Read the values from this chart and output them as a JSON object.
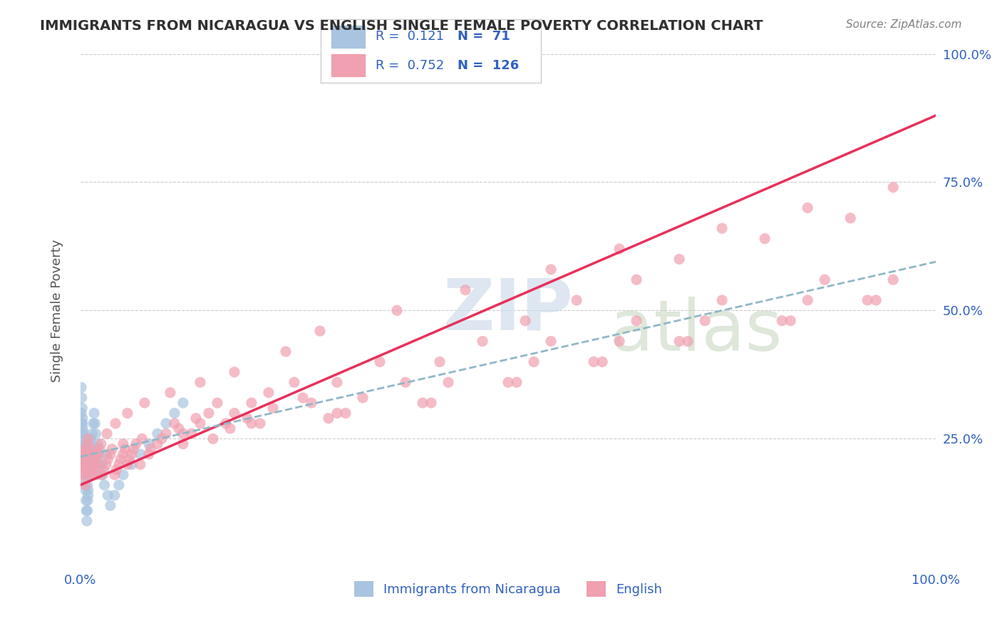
{
  "title": "IMMIGRANTS FROM NICARAGUA VS ENGLISH SINGLE FEMALE POVERTY CORRELATION CHART",
  "source": "Source: ZipAtlas.com",
  "xlabel": "",
  "ylabel": "Single Female Poverty",
  "xticklabels": [
    "0.0%",
    "100.0%"
  ],
  "yticklabels": [
    "25.0%",
    "50.0%",
    "75.0%",
    "100.0%"
  ],
  "legend_labels": [
    "Immigrants from Nicaragua",
    "English"
  ],
  "r_blue": "0.121",
  "n_blue": "71",
  "r_pink": "0.752",
  "n_pink": "126",
  "blue_color": "#a8c4e0",
  "pink_color": "#f0a0b0",
  "blue_line_color": "#4a90d0",
  "pink_line_color": "#e8305a",
  "dashed_line_color": "#90b8c8",
  "legend_text_color": "#3060c0",
  "title_color": "#303030",
  "watermark_color1": "#c8d8e8",
  "watermark_color2": "#c8d8c0",
  "blue_scatter": {
    "x": [
      0.3,
      0.5,
      0.7,
      0.8,
      1.0,
      1.2,
      1.4,
      1.6,
      0.2,
      0.4,
      0.6,
      0.9,
      1.1,
      1.3,
      1.5,
      1.8,
      2.0,
      2.5,
      3.0,
      0.1,
      0.2,
      0.3,
      0.4,
      0.5,
      0.6,
      0.7,
      0.8,
      0.9,
      1.0,
      1.1,
      1.2,
      1.3,
      1.4,
      1.5,
      1.6,
      1.7,
      1.8,
      2.0,
      2.2,
      2.4,
      2.6,
      2.8,
      3.2,
      3.5,
      4.0,
      4.5,
      5.0,
      6.0,
      7.0,
      8.0,
      9.0,
      10.0,
      11.0,
      12.0,
      0.1,
      0.15,
      0.2,
      0.25,
      0.3,
      0.35,
      0.4,
      0.45,
      0.5,
      0.55,
      0.6,
      0.65,
      0.7,
      0.75,
      0.8,
      0.85,
      0.9
    ],
    "y": [
      20,
      22,
      24,
      21,
      23,
      25,
      22,
      20,
      28,
      26,
      24,
      22,
      20,
      19,
      21,
      23,
      18,
      20,
      22,
      30,
      28,
      26,
      24,
      22,
      20,
      18,
      16,
      14,
      18,
      20,
      22,
      24,
      26,
      28,
      30,
      28,
      26,
      24,
      22,
      20,
      18,
      16,
      14,
      12,
      14,
      16,
      18,
      20,
      22,
      24,
      26,
      28,
      30,
      32,
      35,
      33,
      31,
      29,
      27,
      25,
      23,
      21,
      19,
      17,
      15,
      13,
      11,
      9,
      11,
      13,
      15
    ]
  },
  "pink_scatter": {
    "x": [
      0.2,
      0.4,
      0.6,
      0.8,
      1.0,
      1.2,
      1.5,
      1.8,
      2.0,
      2.5,
      3.0,
      3.5,
      4.0,
      4.5,
      5.0,
      5.5,
      6.0,
      6.5,
      7.0,
      8.0,
      9.0,
      10.0,
      11.0,
      12.0,
      13.0,
      14.0,
      15.0,
      16.0,
      17.0,
      18.0,
      20.0,
      22.0,
      25.0,
      27.0,
      30.0,
      35.0,
      0.3,
      0.5,
      0.7,
      0.9,
      1.1,
      1.3,
      1.6,
      1.9,
      2.2,
      2.7,
      3.2,
      3.7,
      4.2,
      4.7,
      5.2,
      5.7,
      6.2,
      7.2,
      8.2,
      9.5,
      11.5,
      13.5,
      15.5,
      17.5,
      19.5,
      22.5,
      26.0,
      29.0,
      33.0,
      38.0,
      42.0,
      47.0,
      52.0,
      58.0,
      65.0,
      70.0,
      80.0,
      90.0,
      0.15,
      0.35,
      0.55,
      0.75,
      1.4,
      1.7,
      2.1,
      2.4,
      3.1,
      4.1,
      5.5,
      7.5,
      10.5,
      14.0,
      18.0,
      24.0,
      28.0,
      37.0,
      45.0,
      55.0,
      63.0,
      75.0,
      85.0,
      95.0,
      5.0,
      12.0,
      20.0,
      30.0,
      40.0,
      50.0,
      60.0,
      70.0,
      82.0,
      92.0,
      21.0,
      31.0,
      41.0,
      51.0,
      61.0,
      71.0,
      83.0,
      93.0,
      43.0,
      53.0,
      63.0,
      73.0,
      85.0,
      95.0,
      55.0,
      65.0,
      75.0,
      87.0
    ],
    "y": [
      20,
      22,
      18,
      24,
      20,
      22,
      18,
      20,
      22,
      18,
      20,
      22,
      18,
      20,
      22,
      20,
      22,
      24,
      20,
      22,
      24,
      26,
      28,
      24,
      26,
      28,
      30,
      32,
      28,
      30,
      32,
      34,
      36,
      32,
      36,
      40,
      21,
      23,
      19,
      25,
      21,
      23,
      19,
      21,
      23,
      19,
      21,
      23,
      19,
      21,
      23,
      21,
      23,
      25,
      23,
      25,
      27,
      29,
      25,
      27,
      29,
      31,
      33,
      29,
      33,
      36,
      40,
      44,
      48,
      52,
      56,
      60,
      64,
      68,
      18,
      20,
      16,
      22,
      18,
      20,
      22,
      24,
      26,
      28,
      30,
      32,
      34,
      36,
      38,
      42,
      46,
      50,
      54,
      58,
      62,
      66,
      70,
      74,
      24,
      26,
      28,
      30,
      32,
      36,
      40,
      44,
      48,
      52,
      28,
      30,
      32,
      36,
      40,
      44,
      48,
      52,
      36,
      40,
      44,
      48,
      52,
      56,
      44,
      48,
      52,
      56
    ]
  },
  "xlim": [
    0,
    100
  ],
  "ylim": [
    0,
    100
  ],
  "blue_regression": {
    "slope": 0.38,
    "intercept": 21.5
  },
  "pink_regression": {
    "slope": 0.72,
    "intercept": 16.0
  }
}
